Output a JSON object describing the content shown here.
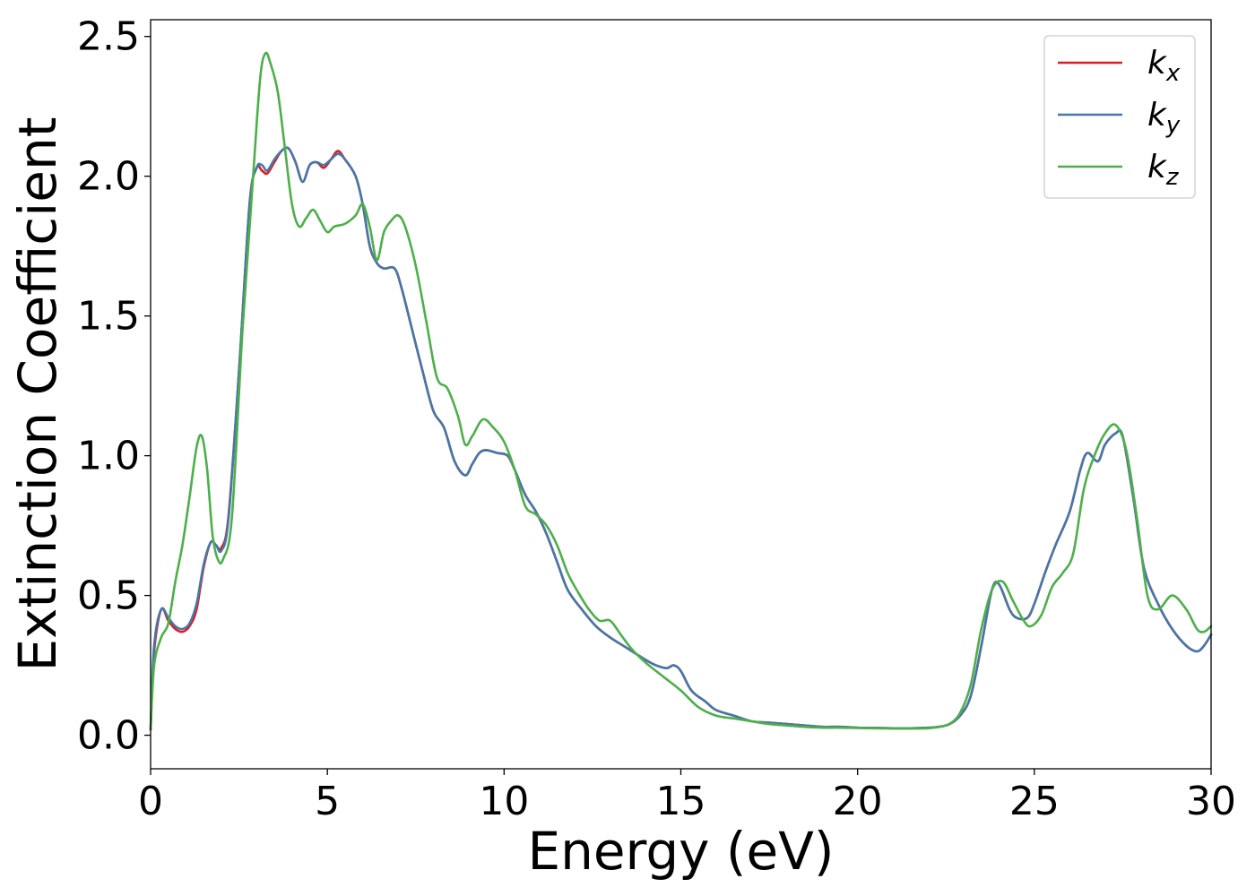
{
  "chart_data": {
    "type": "line",
    "title": "",
    "xlabel": "Energy (eV)",
    "ylabel": "Extinction Coefficient",
    "xlim": [
      0,
      30
    ],
    "ylim": [
      -0.12,
      2.56
    ],
    "xticks": [
      0,
      5,
      10,
      15,
      20,
      25,
      30
    ],
    "xtick_labels": [
      "0",
      "5",
      "10",
      "15",
      "20",
      "25",
      "30"
    ],
    "yticks": [
      0.0,
      0.5,
      1.0,
      1.5,
      2.0,
      2.5
    ],
    "ytick_labels": [
      "0.0",
      "0.5",
      "1.0",
      "1.5",
      "2.0",
      "2.5"
    ],
    "grid": false,
    "legend_position": "top-right",
    "series": [
      {
        "name": "k_x",
        "legend_base": "k",
        "legend_sub": "x",
        "color": "#e41a1c",
        "x": [
          0,
          0.1,
          0.3,
          0.5,
          0.7,
          0.9,
          1.1,
          1.3,
          1.5,
          1.7,
          1.85,
          2.0,
          2.2,
          2.5,
          2.8,
          3.0,
          3.15,
          3.3,
          3.5,
          3.7,
          3.9,
          4.1,
          4.3,
          4.5,
          4.7,
          4.9,
          5.1,
          5.3,
          5.5,
          5.8,
          6.0,
          6.2,
          6.4,
          6.6,
          6.9,
          7.1,
          7.4,
          7.7,
          8.0,
          8.3,
          8.6,
          8.9,
          9.1,
          9.3,
          9.5,
          9.8,
          10.1,
          10.3,
          10.6,
          10.9,
          11.2,
          11.5,
          11.8,
          12.2,
          12.6,
          13.0,
          13.5,
          14.0,
          14.3,
          14.6,
          14.8,
          15.0,
          15.3,
          15.7,
          16.0,
          16.5,
          17.0,
          17.5,
          18.0,
          18.5,
          19.0,
          19.5,
          20.0,
          20.5,
          21.0,
          21.5,
          22.0,
          22.3,
          22.6,
          22.9,
          23.2,
          23.5,
          23.8,
          24.0,
          24.3,
          24.5,
          24.8,
          25.0,
          25.3,
          25.6,
          26.0,
          26.3,
          26.5,
          26.8,
          27.0,
          27.3,
          27.5,
          27.8,
          28.1,
          28.5,
          28.9,
          29.3,
          29.6,
          29.8,
          30.0
        ],
        "y": [
          0.02,
          0.3,
          0.45,
          0.41,
          0.38,
          0.37,
          0.39,
          0.45,
          0.6,
          0.69,
          0.68,
          0.67,
          0.78,
          1.3,
          1.9,
          2.03,
          2.02,
          2.01,
          2.05,
          2.09,
          2.1,
          2.05,
          1.98,
          2.04,
          2.05,
          2.03,
          2.06,
          2.09,
          2.06,
          2.0,
          1.9,
          1.75,
          1.69,
          1.67,
          1.67,
          1.6,
          1.45,
          1.3,
          1.16,
          1.1,
          0.98,
          0.93,
          0.97,
          1.01,
          1.02,
          1.01,
          1.0,
          0.95,
          0.86,
          0.8,
          0.72,
          0.62,
          0.52,
          0.45,
          0.39,
          0.35,
          0.31,
          0.27,
          0.25,
          0.24,
          0.25,
          0.23,
          0.16,
          0.12,
          0.09,
          0.07,
          0.05,
          0.045,
          0.04,
          0.035,
          0.03,
          0.03,
          0.027,
          0.026,
          0.025,
          0.025,
          0.027,
          0.03,
          0.04,
          0.07,
          0.14,
          0.32,
          0.52,
          0.54,
          0.45,
          0.42,
          0.42,
          0.47,
          0.58,
          0.68,
          0.8,
          0.95,
          1.01,
          0.98,
          1.04,
          1.08,
          1.07,
          0.85,
          0.6,
          0.47,
          0.38,
          0.32,
          0.3,
          0.32,
          0.36
        ]
      },
      {
        "name": "k_y",
        "legend_base": "k",
        "legend_sub": "y",
        "color": "#4477aa",
        "x": [
          0,
          0.1,
          0.3,
          0.5,
          0.7,
          0.9,
          1.1,
          1.3,
          1.5,
          1.7,
          1.85,
          2.0,
          2.2,
          2.5,
          2.8,
          3.0,
          3.15,
          3.3,
          3.5,
          3.7,
          3.9,
          4.1,
          4.3,
          4.5,
          4.7,
          4.9,
          5.1,
          5.3,
          5.5,
          5.8,
          6.0,
          6.2,
          6.4,
          6.6,
          6.9,
          7.1,
          7.4,
          7.7,
          8.0,
          8.3,
          8.6,
          8.9,
          9.1,
          9.3,
          9.5,
          9.8,
          10.1,
          10.3,
          10.6,
          10.9,
          11.2,
          11.5,
          11.8,
          12.2,
          12.6,
          13.0,
          13.5,
          14.0,
          14.3,
          14.6,
          14.8,
          15.0,
          15.3,
          15.7,
          16.0,
          16.5,
          17.0,
          17.5,
          18.0,
          18.5,
          19.0,
          19.5,
          20.0,
          20.5,
          21.0,
          21.5,
          22.0,
          22.3,
          22.6,
          22.9,
          23.2,
          23.5,
          23.8,
          24.0,
          24.3,
          24.5,
          24.8,
          25.0,
          25.3,
          25.6,
          26.0,
          26.3,
          26.5,
          26.8,
          27.0,
          27.3,
          27.5,
          27.8,
          28.1,
          28.5,
          28.9,
          29.3,
          29.6,
          29.8,
          30.0
        ],
        "y": [
          0.02,
          0.32,
          0.45,
          0.42,
          0.39,
          0.38,
          0.4,
          0.47,
          0.61,
          0.69,
          0.68,
          0.66,
          0.77,
          1.3,
          1.9,
          2.03,
          2.04,
          2.02,
          2.06,
          2.09,
          2.1,
          2.05,
          1.98,
          2.04,
          2.05,
          2.04,
          2.06,
          2.08,
          2.06,
          2.0,
          1.9,
          1.75,
          1.69,
          1.67,
          1.67,
          1.6,
          1.45,
          1.3,
          1.16,
          1.1,
          0.98,
          0.93,
          0.97,
          1.01,
          1.02,
          1.01,
          1.0,
          0.95,
          0.86,
          0.8,
          0.72,
          0.62,
          0.52,
          0.45,
          0.39,
          0.35,
          0.31,
          0.27,
          0.25,
          0.24,
          0.25,
          0.23,
          0.16,
          0.12,
          0.09,
          0.07,
          0.05,
          0.045,
          0.04,
          0.035,
          0.03,
          0.03,
          0.027,
          0.026,
          0.025,
          0.025,
          0.027,
          0.03,
          0.04,
          0.07,
          0.14,
          0.32,
          0.52,
          0.54,
          0.45,
          0.42,
          0.42,
          0.47,
          0.58,
          0.68,
          0.8,
          0.95,
          1.01,
          0.98,
          1.04,
          1.08,
          1.07,
          0.85,
          0.6,
          0.47,
          0.38,
          0.32,
          0.3,
          0.32,
          0.36
        ]
      },
      {
        "name": "k_z",
        "legend_base": "k",
        "legend_sub": "z",
        "color": "#4daf4a",
        "x": [
          0,
          0.1,
          0.3,
          0.5,
          0.7,
          0.9,
          1.1,
          1.3,
          1.45,
          1.6,
          1.75,
          1.9,
          2.05,
          2.3,
          2.6,
          2.9,
          3.1,
          3.25,
          3.4,
          3.6,
          3.8,
          4.0,
          4.2,
          4.4,
          4.6,
          4.8,
          5.0,
          5.2,
          5.5,
          5.8,
          6.0,
          6.2,
          6.4,
          6.6,
          6.8,
          7.0,
          7.2,
          7.5,
          7.8,
          8.1,
          8.4,
          8.7,
          8.9,
          9.1,
          9.4,
          9.7,
          10.0,
          10.3,
          10.6,
          10.9,
          11.2,
          11.5,
          11.8,
          12.1,
          12.4,
          12.7,
          13.0,
          13.3,
          13.6,
          14.0,
          14.5,
          15.0,
          15.5,
          16.0,
          16.5,
          17.0,
          17.5,
          18.0,
          18.5,
          19.0,
          19.5,
          20.0,
          20.5,
          21.0,
          21.5,
          22.0,
          22.3,
          22.6,
          22.9,
          23.2,
          23.5,
          23.8,
          24.1,
          24.4,
          24.7,
          24.9,
          25.2,
          25.5,
          25.8,
          26.1,
          26.4,
          26.7,
          27.0,
          27.3,
          27.6,
          27.9,
          28.2,
          28.5,
          28.9,
          29.3,
          29.6,
          29.8,
          30.0
        ],
        "y": [
          0.02,
          0.25,
          0.35,
          0.4,
          0.55,
          0.68,
          0.85,
          1.03,
          1.07,
          0.95,
          0.72,
          0.63,
          0.63,
          0.78,
          1.45,
          2.0,
          2.35,
          2.44,
          2.4,
          2.3,
          2.1,
          1.9,
          1.82,
          1.85,
          1.88,
          1.84,
          1.8,
          1.82,
          1.83,
          1.86,
          1.9,
          1.82,
          1.7,
          1.8,
          1.84,
          1.86,
          1.82,
          1.68,
          1.48,
          1.28,
          1.24,
          1.14,
          1.04,
          1.07,
          1.13,
          1.1,
          1.05,
          0.95,
          0.82,
          0.79,
          0.75,
          0.68,
          0.58,
          0.51,
          0.45,
          0.41,
          0.41,
          0.36,
          0.31,
          0.26,
          0.21,
          0.16,
          0.1,
          0.07,
          0.06,
          0.05,
          0.04,
          0.035,
          0.03,
          0.027,
          0.027,
          0.026,
          0.025,
          0.024,
          0.024,
          0.025,
          0.03,
          0.04,
          0.08,
          0.18,
          0.38,
          0.52,
          0.55,
          0.48,
          0.41,
          0.39,
          0.43,
          0.53,
          0.58,
          0.65,
          0.88,
          1.0,
          1.08,
          1.11,
          1.02,
          0.78,
          0.5,
          0.45,
          0.5,
          0.45,
          0.38,
          0.37,
          0.39
        ]
      }
    ]
  }
}
